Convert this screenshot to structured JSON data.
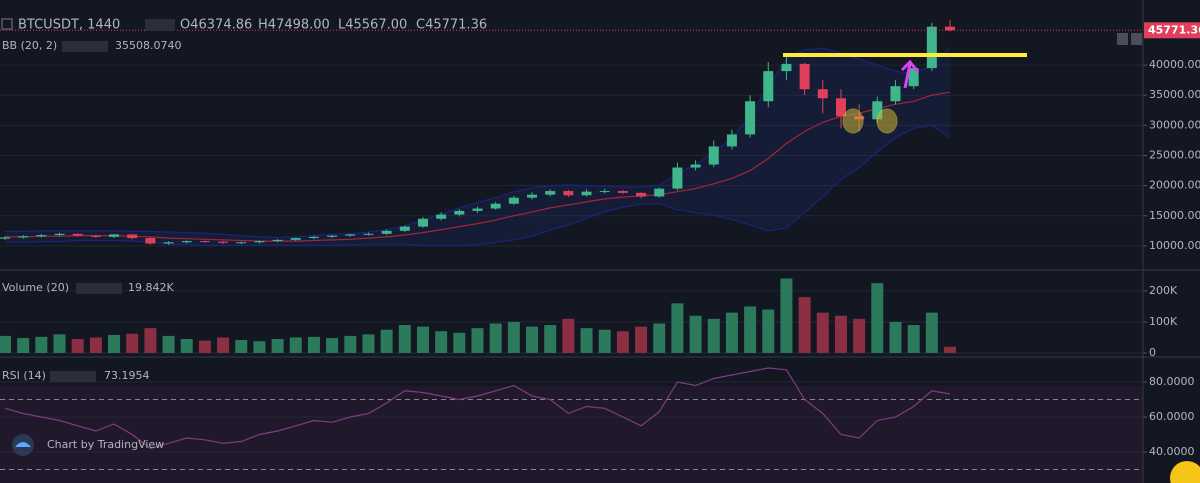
{
  "header": {
    "symbol": "BTCUSDT, 1440",
    "open": "O46374.86",
    "high": "H47498.00",
    "low": "L45567.00",
    "close": "C45771.36",
    "bb": "BB (20, 2)",
    "volume": "Volume (20)",
    "rsi": "RSI (14)",
    "brand": "Chart by TradingView"
  },
  "chart_data": [
    {
      "type": "candlestick",
      "up_color": "#3fb68b",
      "down_color": "#e0405c",
      "grid": true,
      "open": [
        11200,
        11400,
        11600,
        11800,
        12000,
        11700,
        11500,
        11900,
        11300,
        10400,
        10600,
        10800,
        10700,
        10500,
        10600,
        10800,
        11000,
        11300,
        11500,
        11700,
        11900,
        12000,
        12500,
        13200,
        14500,
        15200,
        15800,
        16200,
        17000,
        18000,
        18500,
        19100,
        18400,
        19000,
        19100,
        18800,
        18200,
        19500,
        23000,
        23500,
        26500,
        28500,
        34000,
        39000,
        40200,
        36000,
        34500,
        31500,
        31000,
        34000,
        36500,
        39500,
        46374.86
      ],
      "high": [
        11600,
        11800,
        12000,
        12200,
        12100,
        11800,
        12000,
        11900,
        11400,
        10800,
        10900,
        10900,
        10800,
        10700,
        10900,
        11100,
        11400,
        11700,
        11800,
        12000,
        12200,
        12700,
        13400,
        14800,
        15600,
        16100,
        16500,
        17300,
        18300,
        18900,
        19400,
        19300,
        19400,
        19500,
        19300,
        18900,
        19700,
        23800,
        24200,
        27500,
        29300,
        35000,
        40500,
        41900,
        40400,
        37500,
        36000,
        33500,
        34800,
        37500,
        40000,
        47000,
        47498
      ],
      "low": [
        11000,
        11200,
        11400,
        11600,
        11500,
        11300,
        11300,
        11100,
        10200,
        10200,
        10400,
        10500,
        10300,
        10300,
        10400,
        10600,
        10800,
        11100,
        11300,
        11500,
        11700,
        11800,
        12300,
        13000,
        14200,
        14900,
        15500,
        16000,
        16800,
        17700,
        18200,
        18100,
        18200,
        18700,
        18600,
        17900,
        18000,
        19200,
        22500,
        23100,
        26000,
        28000,
        33000,
        37500,
        35000,
        32000,
        29500,
        29000,
        30500,
        33500,
        36000,
        39000,
        45567
      ],
      "close": [
        11400,
        11600,
        11800,
        12000,
        11700,
        11500,
        11900,
        11300,
        10400,
        10600,
        10800,
        10700,
        10500,
        10600,
        10800,
        11000,
        11300,
        11500,
        11700,
        11900,
        12000,
        12500,
        13200,
        14500,
        15200,
        15800,
        16200,
        17000,
        18000,
        18500,
        19100,
        18400,
        19000,
        19100,
        18800,
        18200,
        19500,
        23000,
        23500,
        26500,
        28500,
        34000,
        39000,
        40200,
        36000,
        34500,
        31500,
        31000,
        34000,
        36500,
        39500,
        46374.86,
        45771.36
      ],
      "series": [
        {
          "name": "BB middle",
          "color": "#a3243c",
          "legend_label": "35508.0740",
          "values": [
            11500,
            11500,
            11600,
            11600,
            11700,
            11700,
            11700,
            11600,
            11500,
            11300,
            11200,
            11100,
            11000,
            10900,
            10800,
            10800,
            10800,
            10900,
            11000,
            11100,
            11300,
            11500,
            11800,
            12200,
            12700,
            13200,
            13700,
            14300,
            15000,
            15600,
            16300,
            16800,
            17300,
            17800,
            18100,
            18300,
            18500,
            19000,
            19500,
            20300,
            21200,
            22500,
            24500,
            27000,
            29000,
            30500,
            31500,
            32000,
            32800,
            33500,
            34000,
            35000,
            35508.074
          ]
        },
        {
          "name": "BB upper",
          "color": "#1a237e",
          "values": [
            12400,
            12400,
            12500,
            12500,
            12500,
            12500,
            12500,
            12400,
            12400,
            12300,
            12200,
            12100,
            11900,
            11700,
            11500,
            11400,
            11500,
            11700,
            11900,
            12000,
            12300,
            12700,
            13300,
            14300,
            15300,
            16300,
            17200,
            18000,
            19000,
            19600,
            20000,
            20100,
            20000,
            19900,
            19800,
            19700,
            20000,
            22000,
            23500,
            25500,
            28000,
            31500,
            36500,
            41000,
            42500,
            42800,
            42000,
            41000,
            40000,
            39000,
            38500,
            40000,
            43000
          ]
        },
        {
          "name": "BB lower",
          "color": "#1a237e",
          "values": [
            10600,
            10600,
            10700,
            10700,
            10900,
            10900,
            10900,
            10800,
            10600,
            10300,
            10200,
            10100,
            10100,
            10100,
            10100,
            10200,
            10100,
            10100,
            10100,
            10200,
            10300,
            10300,
            10300,
            10100,
            10100,
            10100,
            10200,
            10600,
            11000,
            11600,
            12600,
            13500,
            14600,
            15700,
            16400,
            16900,
            17000,
            16000,
            15500,
            15100,
            14400,
            13500,
            12500,
            13000,
            15500,
            18200,
            21000,
            23000,
            25600,
            28000,
            29500,
            30000,
            28016
          ]
        }
      ],
      "ylim": [
        6000,
        50800
      ],
      "yticks": [
        {
          "value": 10000,
          "label": "10000.00"
        },
        {
          "value": 15000,
          "label": "15000.00"
        },
        {
          "value": 20000,
          "label": "20000.00"
        },
        {
          "value": 25000,
          "label": "25000.00"
        },
        {
          "value": 30000,
          "label": "30000.00"
        },
        {
          "value": 35000,
          "label": "35000.00"
        },
        {
          "value": 40000,
          "label": "40000.00"
        }
      ]
    },
    {
      "type": "bar",
      "up_color": "#2b7a5c",
      "down_color": "#8c2f43",
      "grid": true,
      "legend_label": "19.842K",
      "values": [
        55000,
        48000,
        52000,
        60000,
        45000,
        50000,
        58000,
        62000,
        80000,
        55000,
        45000,
        40000,
        50000,
        42000,
        38000,
        45000,
        50000,
        52000,
        48000,
        55000,
        60000,
        75000,
        90000,
        85000,
        70000,
        65000,
        80000,
        95000,
        100000,
        85000,
        90000,
        110000,
        80000,
        75000,
        70000,
        85000,
        95000,
        160000,
        120000,
        110000,
        130000,
        150000,
        140000,
        240000,
        180000,
        130000,
        120000,
        110000,
        225000,
        100000,
        90000,
        130000,
        19842
      ],
      "ylim": [
        -13000,
        261000
      ],
      "yticks": [
        0,
        {
          "value": 100000,
          "label": "100K"
        },
        {
          "value": 200000,
          "label": "200K"
        }
      ]
    },
    {
      "type": "line",
      "color": "#7e3d80",
      "grid": true,
      "levels": [
        30,
        70
      ],
      "values": [
        65,
        62,
        60,
        58,
        55,
        52,
        56,
        50,
        42,
        45,
        48,
        47,
        45,
        46,
        50,
        52,
        55,
        58,
        57,
        60,
        62,
        68,
        75,
        74,
        72,
        70,
        72,
        75,
        78,
        72,
        70,
        62,
        66,
        65,
        60,
        55,
        63,
        80,
        78,
        82,
        84,
        86,
        88,
        87,
        70,
        62,
        50,
        48,
        58,
        60,
        66,
        75,
        73.1954
      ],
      "ylim": [
        22.3,
        92.6
      ],
      "yticks": [
        {
          "value": 40,
          "label": "40.0000"
        },
        {
          "value": 60,
          "label": "60.0000"
        },
        {
          "value": 80,
          "label": "80.0000"
        }
      ]
    }
  ]
}
